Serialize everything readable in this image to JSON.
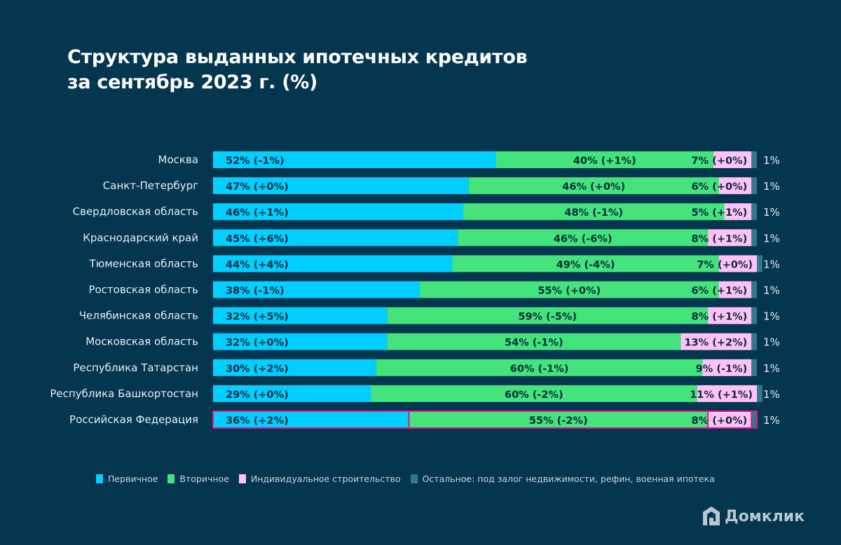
{
  "chart_data": {
    "type": "bar",
    "orientation": "horizontal",
    "stacked": true,
    "title": "Структура выданных ипотечных кредитов за сентябрь 2023 г. (%)",
    "title_lines": [
      "Структура выданных ипотечных кредитов",
      "за сентябрь 2023 г. (%)"
    ],
    "xlim": [
      0,
      100
    ],
    "grid": false,
    "legend_position": "bottom",
    "categories": [
      "Москва",
      "Санкт-Петербург",
      "Свердловская область",
      "Краснодарский край",
      "Тюменская область",
      "Ростовская область",
      "Челябинская область",
      "Московская область",
      "Республика Татарстан",
      "Республика Башкортостан",
      "Российская Федерация"
    ],
    "highlighted_category": "Российская Федерация",
    "series": [
      {
        "name": "Первичное",
        "color": "#00cfff",
        "values": [
          52,
          47,
          46,
          45,
          44,
          38,
          32,
          32,
          30,
          29,
          36
        ],
        "changes": [
          "-1%",
          "+0%",
          "+1%",
          "+6%",
          "+4%",
          "-1%",
          "+5%",
          "+0%",
          "+2%",
          "+0%",
          "+2%"
        ]
      },
      {
        "name": "Вторичное",
        "color": "#44e37b",
        "values": [
          40,
          46,
          48,
          46,
          49,
          55,
          59,
          54,
          60,
          60,
          55
        ],
        "changes": [
          "+1%",
          "+0%",
          "-1%",
          "-6%",
          "-4%",
          "+0%",
          "-5%",
          "-1%",
          "-1%",
          "-2%",
          "-2%"
        ]
      },
      {
        "name": "Индивидуальное строительство",
        "color": "#ffc2f6",
        "values": [
          7,
          6,
          5,
          8,
          7,
          6,
          8,
          13,
          9,
          11,
          8
        ],
        "changes": [
          "+0%",
          "+0%",
          "+1%",
          "+1%",
          "+0%",
          "+1%",
          "+1%",
          "+2%",
          "-1%",
          "+1%",
          "+0%"
        ]
      },
      {
        "name": "Остальное: под залог недвижимости, рефин, военная ипотека",
        "color": "#2e7b8d",
        "values": [
          1,
          1,
          1,
          1,
          1,
          1,
          1,
          1,
          1,
          1,
          1
        ]
      }
    ],
    "highlight_color": "#e0168f"
  },
  "logo": "Домклик"
}
